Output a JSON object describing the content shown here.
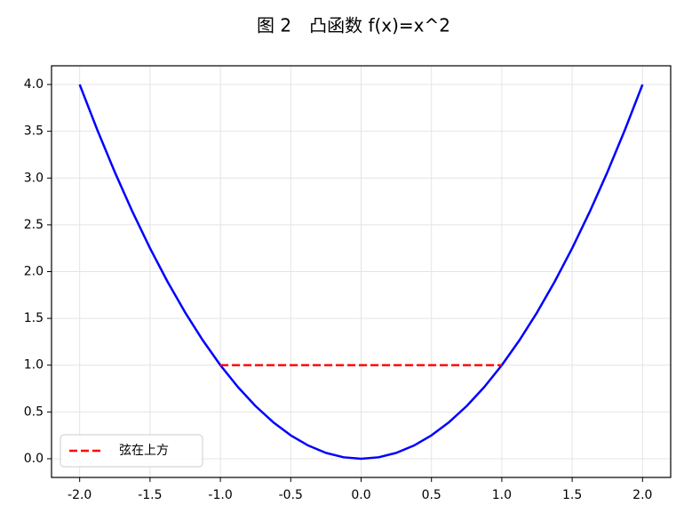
{
  "chart_data": {
    "type": "line",
    "title": "图 2　凸函数 f(x)=x^2",
    "series": [
      {
        "color": "#0000ff",
        "linestyle": "solid",
        "x": [
          -2,
          -1.875,
          -1.75,
          -1.625,
          -1.5,
          -1.375,
          -1.25,
          -1.125,
          -1,
          -0.875,
          -0.75,
          -0.625,
          -0.5,
          -0.375,
          -0.25,
          -0.125,
          0,
          0.125,
          0.25,
          0.375,
          0.5,
          0.625,
          0.75,
          0.875,
          1,
          1.125,
          1.25,
          1.375,
          1.5,
          1.625,
          1.75,
          1.875,
          2
        ],
        "values": [
          4,
          3.515625,
          3.0625,
          2.640625,
          2.25,
          1.890625,
          1.5625,
          1.265625,
          1,
          0.765625,
          0.5625,
          0.390625,
          0.25,
          0.140625,
          0.0625,
          0.015625,
          0,
          0.015625,
          0.0625,
          0.140625,
          0.25,
          0.390625,
          0.5625,
          0.765625,
          1,
          1.265625,
          1.5625,
          1.890625,
          2.25,
          2.640625,
          3.0625,
          3.515625,
          4
        ]
      },
      {
        "name": "弦在上方",
        "color": "#ff0000",
        "linestyle": "dashed",
        "x": [
          -1,
          1
        ],
        "values": [
          1,
          1
        ]
      }
    ],
    "xlim": [
      -2.2,
      2.2
    ],
    "xticks": [
      {
        "value": -2,
        "label": "-2.0"
      },
      {
        "value": -1.5,
        "label": "-1.5"
      },
      {
        "value": -1,
        "label": "-1.0"
      },
      {
        "value": -0.5,
        "label": "-0.5"
      },
      {
        "value": 0,
        "label": "0.0"
      },
      0.5,
      {
        "value": 1,
        "label": "1.0"
      },
      1.5,
      {
        "value": 2,
        "label": "2.0"
      }
    ],
    "ylim": [
      -0.2,
      4.2
    ],
    "yticks": [
      {
        "value": 0,
        "label": "0.0"
      },
      0.5,
      {
        "value": 1,
        "label": "1.0"
      },
      1.5,
      {
        "value": 2,
        "label": "2.0"
      },
      2.5,
      {
        "value": 3,
        "label": "3.0"
      },
      3.5,
      {
        "value": 4,
        "label": "4.0"
      }
    ],
    "grid": true,
    "legend": "lower left"
  }
}
